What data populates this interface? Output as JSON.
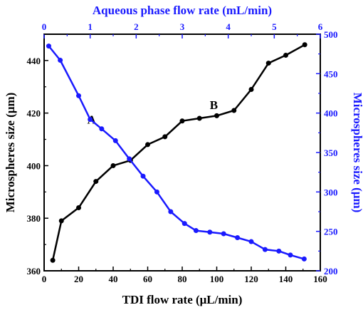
{
  "chart_data": {
    "type": "line",
    "title": "",
    "bottom_axis": {
      "label": "TDI flow rate (μL/min)",
      "range": [
        0,
        160
      ],
      "ticks": [
        0,
        20,
        40,
        60,
        80,
        100,
        120,
        140,
        160
      ],
      "color": "#000000"
    },
    "top_axis": {
      "label": "Aqueous phase flow rate (mL/min)",
      "range": [
        0,
        6
      ],
      "ticks": [
        0,
        1,
        2,
        3,
        4,
        5,
        6
      ],
      "color": "#1a1aff"
    },
    "left_axis": {
      "label": "Microspheres size (μm)",
      "range": [
        360,
        450
      ],
      "ticks": [
        360,
        380,
        400,
        420,
        440
      ],
      "color": "#000000"
    },
    "right_axis": {
      "label": "Microspheres size (μm)",
      "range": [
        200,
        500
      ],
      "ticks": [
        200,
        250,
        300,
        350,
        400,
        450,
        500
      ],
      "color": "#1a1aff"
    },
    "series": [
      {
        "name": "A",
        "color": "#000000",
        "x_axis": "bottom",
        "y_axis": "left",
        "label_at": [
          25,
          416
        ],
        "points": [
          [
            5,
            364
          ],
          [
            10,
            379
          ],
          [
            20,
            384
          ],
          [
            30,
            394
          ],
          [
            40,
            400
          ],
          [
            50,
            402
          ],
          [
            60,
            408
          ],
          [
            70,
            411
          ],
          [
            80,
            417
          ],
          [
            90,
            418
          ],
          [
            100,
            419
          ],
          [
            110,
            421
          ],
          [
            120,
            429
          ],
          [
            130,
            439
          ],
          [
            140,
            442
          ],
          [
            151,
            446
          ]
        ]
      },
      {
        "name": "B",
        "color": "#1a1aff",
        "x_axis": "top",
        "y_axis": "right",
        "label_at": [
          3.6,
          405
        ],
        "points": [
          [
            0.1,
            485
          ],
          [
            0.35,
            467
          ],
          [
            0.75,
            422
          ],
          [
            1.0,
            392
          ],
          [
            1.25,
            380
          ],
          [
            1.55,
            365
          ],
          [
            1.85,
            342
          ],
          [
            2.15,
            320
          ],
          [
            2.45,
            300
          ],
          [
            2.75,
            275
          ],
          [
            3.05,
            260
          ],
          [
            3.3,
            251
          ],
          [
            3.6,
            249
          ],
          [
            3.9,
            247
          ],
          [
            4.2,
            242
          ],
          [
            4.5,
            237
          ],
          [
            4.8,
            227
          ],
          [
            5.1,
            225
          ],
          [
            5.35,
            220
          ],
          [
            5.65,
            215
          ]
        ]
      }
    ]
  }
}
